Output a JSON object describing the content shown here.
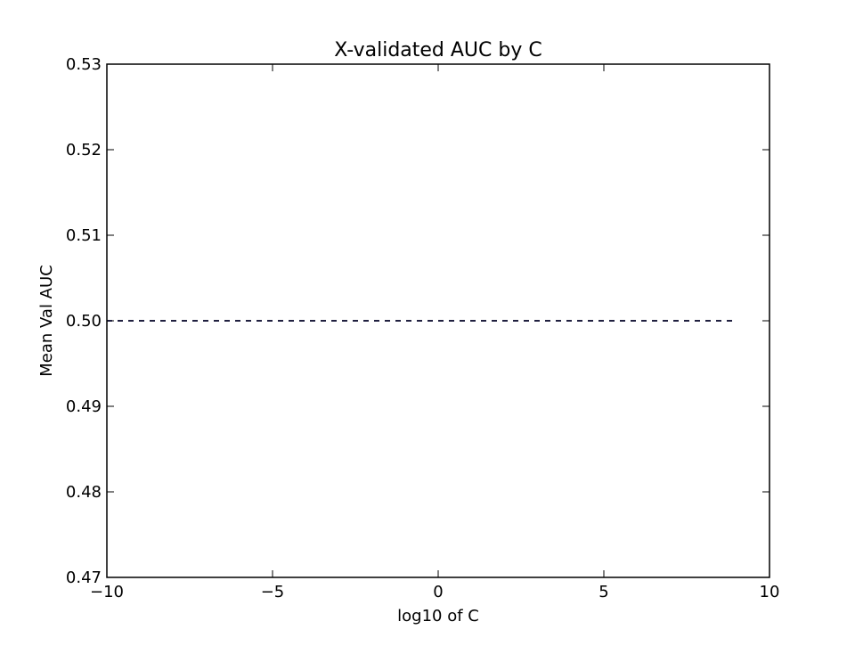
{
  "chart_data": {
    "type": "line",
    "title": "X-validated AUC by C",
    "xlabel": "log10 of C",
    "ylabel": "Mean Val AUC",
    "xlim": [
      -10,
      10
    ],
    "ylim": [
      0.47,
      0.53
    ],
    "xticks": [
      -10,
      -5,
      0,
      5,
      10
    ],
    "xtick_labels": [
      "−10",
      "−5",
      "0",
      "5",
      "10"
    ],
    "yticks": [
      0.47,
      0.48,
      0.49,
      0.5,
      0.51,
      0.52,
      0.53
    ],
    "ytick_labels": [
      "0.47",
      "0.48",
      "0.49",
      "0.50",
      "0.51",
      "0.52",
      "0.53"
    ],
    "grid": false,
    "series": [
      {
        "style": "dashed",
        "color": "#0000ff",
        "x": [
          -10,
          -9,
          -8,
          -7,
          -6,
          -5,
          -4,
          -3,
          -2,
          -1,
          0,
          1,
          2,
          3,
          4,
          5,
          6,
          7,
          8,
          9
        ],
        "y": [
          0.5,
          0.5,
          0.5,
          0.5,
          0.5,
          0.5,
          0.5,
          0.5,
          0.5,
          0.5,
          0.5,
          0.5,
          0.5,
          0.5,
          0.5,
          0.5,
          0.5,
          0.5,
          0.5,
          0.5
        ]
      },
      {
        "style": "dashed",
        "color": "#000000",
        "x": [
          -10,
          -9,
          -8,
          -7,
          -6,
          -5,
          -4,
          -3,
          -2,
          -1,
          0,
          1,
          2,
          3,
          4,
          5,
          6,
          7,
          8,
          9
        ],
        "y": [
          0.5,
          0.5,
          0.5,
          0.5,
          0.5,
          0.5,
          0.5,
          0.5,
          0.5,
          0.5,
          0.5,
          0.5,
          0.5,
          0.5,
          0.5,
          0.5,
          0.5,
          0.5,
          0.5,
          0.5
        ]
      }
    ]
  }
}
